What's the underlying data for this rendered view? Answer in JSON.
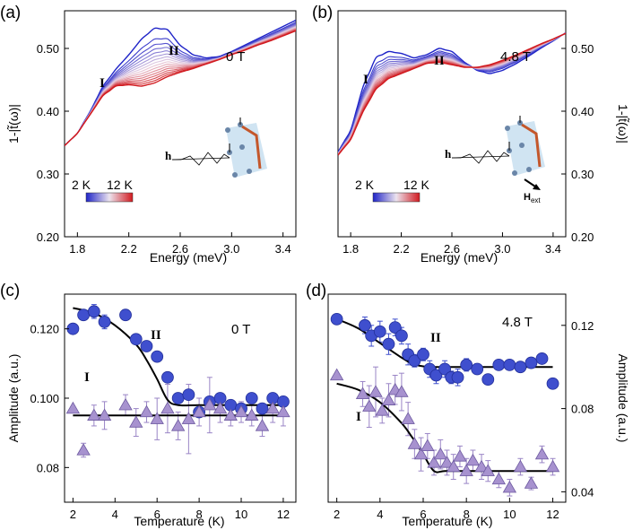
{
  "panels": {
    "a": {
      "letter": "(a)",
      "field": "0 T",
      "peak_I": "I",
      "peak_II": "II",
      "scale_low": "2 K",
      "scale_high": "12 K",
      "h_label": "h"
    },
    "b": {
      "letter": "(b)",
      "field": "4.8 T",
      "peak_I": "I",
      "peak_II": "II",
      "scale_low": "2 K",
      "scale_high": "12 K",
      "h_label": "h",
      "hext_label": "H",
      "hext_sub": "ext"
    },
    "c": {
      "letter": "(c)",
      "field": "0 T",
      "peak_I": "I",
      "peak_II": "II"
    },
    "d": {
      "letter": "(d)",
      "field": "4.8 T",
      "peak_I": "I",
      "peak_II": "II"
    }
  },
  "colors": {
    "cold": "#1f24c8",
    "mid": "#e9d2e2",
    "hot": "#d11a1f",
    "marker_blue": "#3f4fce",
    "marker_purple": "#a792cf",
    "errbar_purple": "#9a85c6"
  },
  "chart_data": [
    {
      "id": "a",
      "type": "line",
      "title": "0 T",
      "xlabel": "Energy (meV)",
      "ylabel": "1-|t̃(ω)|",
      "xlim": [
        1.7,
        3.5
      ],
      "ylim": [
        0.2,
        0.56
      ],
      "xticks": [
        1.8,
        2.2,
        2.6,
        3.0,
        3.4
      ],
      "xtick_labels": [
        "1.8",
        "2.2",
        "2.6",
        "3.0",
        "3.4"
      ],
      "yticks": [
        0.2,
        0.3,
        0.4,
        0.5
      ],
      "ytick_labels": [
        "0.20",
        "0.30",
        "0.40",
        "0.50"
      ],
      "colorbar": {
        "from": "2 K",
        "to": "12 K"
      },
      "series": [
        {
          "name": "2 K",
          "temp": 2,
          "x": [
            1.7,
            1.8,
            1.9,
            2.0,
            2.1,
            2.2,
            2.3,
            2.4,
            2.5,
            2.6,
            2.7,
            2.8,
            2.9,
            3.0,
            3.1,
            3.2,
            3.3,
            3.4,
            3.5
          ],
          "y": [
            0.345,
            0.365,
            0.4,
            0.44,
            0.467,
            0.49,
            0.515,
            0.532,
            0.53,
            0.505,
            0.49,
            0.485,
            0.487,
            0.495,
            0.505,
            0.515,
            0.525,
            0.535,
            0.545
          ]
        },
        {
          "name": "12 K",
          "temp": 12,
          "x": [
            1.7,
            1.8,
            1.9,
            2.0,
            2.1,
            2.2,
            2.3,
            2.4,
            2.5,
            2.6,
            2.7,
            2.8,
            2.9,
            3.0,
            3.1,
            3.2,
            3.3,
            3.4,
            3.5
          ],
          "y": [
            0.345,
            0.365,
            0.395,
            0.425,
            0.44,
            0.442,
            0.44,
            0.445,
            0.455,
            0.462,
            0.468,
            0.475,
            0.482,
            0.49,
            0.497,
            0.505,
            0.512,
            0.52,
            0.528
          ]
        }
      ]
    },
    {
      "id": "b",
      "type": "line",
      "title": "4.8 T",
      "xlabel": "Energy (meV)",
      "ylabel": "1-|t̃(ω)|",
      "xlim": [
        1.7,
        3.5
      ],
      "ylim": [
        0.2,
        0.56
      ],
      "xticks": [
        1.8,
        2.2,
        2.6,
        3.0,
        3.4
      ],
      "xtick_labels": [
        "1.8",
        "2.2",
        "2.6",
        "3.0",
        "3.4"
      ],
      "yticks": [
        0.2,
        0.3,
        0.4,
        0.5
      ],
      "ytick_labels": [
        "0.20",
        "0.30",
        "0.40",
        "0.50"
      ],
      "colorbar": {
        "from": "2 K",
        "to": "12 K"
      },
      "series": [
        {
          "name": "2 K",
          "temp": 2,
          "x": [
            1.7,
            1.8,
            1.9,
            2.0,
            2.1,
            2.2,
            2.3,
            2.4,
            2.5,
            2.6,
            2.7,
            2.8,
            2.9,
            3.0,
            3.1,
            3.2,
            3.3,
            3.4,
            3.5
          ],
          "y": [
            0.335,
            0.37,
            0.44,
            0.485,
            0.495,
            0.492,
            0.485,
            0.49,
            0.5,
            0.495,
            0.478,
            0.465,
            0.46,
            0.465,
            0.475,
            0.487,
            0.5,
            0.512,
            0.525
          ]
        },
        {
          "name": "12 K",
          "temp": 12,
          "x": [
            1.7,
            1.8,
            1.9,
            2.0,
            2.1,
            2.2,
            2.3,
            2.4,
            2.5,
            2.6,
            2.7,
            2.8,
            2.9,
            3.0,
            3.1,
            3.2,
            3.3,
            3.4,
            3.5
          ],
          "y": [
            0.33,
            0.355,
            0.4,
            0.435,
            0.452,
            0.46,
            0.468,
            0.476,
            0.478,
            0.474,
            0.47,
            0.47,
            0.474,
            0.481,
            0.489,
            0.498,
            0.507,
            0.515,
            0.524
          ]
        }
      ]
    },
    {
      "id": "c",
      "type": "scatter",
      "title": "0 T",
      "xlabel": "Temperature (K)",
      "ylabel": "Amplitude (a.u.)",
      "xlim": [
        1.6,
        12.6
      ],
      "ylim": [
        0.07,
        0.13
      ],
      "xticks": [
        2,
        4,
        6,
        8,
        10,
        12
      ],
      "xtick_labels": [
        "2",
        "4",
        "6",
        "8",
        "10",
        "12"
      ],
      "yticks": [
        0.08,
        0.1,
        0.12
      ],
      "ytick_labels": [
        "0.08",
        "0.100",
        "0.120"
      ],
      "series": [
        {
          "name": "II",
          "marker": "circle",
          "x": [
            2.0,
            2.5,
            3.0,
            3.5,
            4.5,
            5.0,
            5.5,
            6.0,
            6.5,
            7.0,
            7.5,
            8.0,
            8.5,
            9.0,
            9.5,
            10.0,
            10.5,
            11.0,
            11.5,
            12.0
          ],
          "y": [
            0.12,
            0.124,
            0.125,
            0.122,
            0.124,
            0.117,
            0.115,
            0.112,
            0.106,
            0.1,
            0.101,
            0.096,
            0.099,
            0.1,
            0.098,
            0.097,
            0.1,
            0.097,
            0.1,
            0.099
          ],
          "err": [
            0,
            0.001,
            0.002,
            0.002,
            0,
            0,
            0,
            0,
            0,
            0,
            0,
            0,
            0,
            0,
            0,
            0,
            0,
            0,
            0,
            0
          ],
          "fit": {
            "x": [
              2,
              3,
              4,
              5,
              5.5,
              6,
              6.5,
              7,
              8,
              10,
              12
            ],
            "y": [
              0.126,
              0.1245,
              0.121,
              0.1155,
              0.111,
              0.1055,
              0.0995,
              0.098,
              0.098,
              0.098,
              0.098
            ]
          }
        },
        {
          "name": "I",
          "marker": "triangle",
          "x": [
            2.0,
            2.5,
            3.0,
            3.5,
            4.5,
            5.0,
            5.5,
            6.0,
            6.5,
            7.0,
            7.5,
            8.0,
            8.5,
            9.0,
            9.5,
            10.0,
            10.5,
            11.0,
            11.5,
            12.0
          ],
          "y": [
            0.097,
            0.085,
            0.095,
            0.095,
            0.098,
            0.093,
            0.096,
            0.094,
            0.097,
            0.092,
            0.094,
            0.096,
            0.098,
            0.097,
            0.095,
            0.096,
            0.095,
            0.092,
            0.097,
            0.096
          ],
          "err": [
            0,
            0.002,
            0.003,
            0.004,
            0.003,
            0.004,
            0.003,
            0.006,
            0.007,
            0.004,
            0.01,
            0.004,
            0.008,
            0.004,
            0.003,
            0.003,
            0.003,
            0.003,
            0.004,
            0.004
          ],
          "fit": {
            "x": [
              2,
              12
            ],
            "y": [
              0.095,
              0.095
            ]
          }
        }
      ]
    },
    {
      "id": "d",
      "type": "scatter",
      "title": "4.8 T",
      "xlabel": "Temperature (K)",
      "ylabel": "Amplitude (a.u.)",
      "xlim": [
        1.6,
        12.6
      ],
      "ylim": [
        0.035,
        0.135
      ],
      "xticks": [
        2,
        4,
        6,
        8,
        10,
        12
      ],
      "xtick_labels": [
        "2",
        "4",
        "6",
        "8",
        "10",
        "12"
      ],
      "yticks": [
        0.04,
        0.08,
        0.12
      ],
      "ytick_labels": [
        "0.04",
        "0.08",
        "0.12"
      ],
      "series": [
        {
          "name": "II",
          "marker": "circle",
          "x": [
            2.0,
            3.3,
            3.6,
            4.0,
            4.4,
            4.7,
            5.0,
            5.3,
            5.6,
            6.0,
            6.3,
            6.6,
            7.0,
            7.3,
            7.6,
            8.0,
            8.5,
            9.0,
            9.5,
            10.0,
            10.5,
            11.0,
            11.5,
            12.0
          ],
          "y": [
            0.123,
            0.12,
            0.115,
            0.117,
            0.111,
            0.119,
            0.115,
            0.106,
            0.103,
            0.106,
            0.099,
            0.096,
            0.099,
            0.095,
            0.095,
            0.101,
            0.099,
            0.094,
            0.101,
            0.101,
            0.1,
            0.102,
            0.104,
            0.092
          ],
          "err": [
            0,
            0.004,
            0.005,
            0.005,
            0.005,
            0.004,
            0.004,
            0.005,
            0.003,
            0.003,
            0.004,
            0.004,
            0.004,
            0.003,
            0.004,
            0.003,
            0.002,
            0,
            0,
            0,
            0,
            0,
            0,
            0
          ],
          "fit": {
            "x": [
              2,
              3,
              4,
              5,
              5.5,
              6,
              6.5,
              7,
              8,
              10,
              12
            ],
            "y": [
              0.123,
              0.1185,
              0.1115,
              0.1045,
              0.1015,
              0.1003,
              0.1,
              0.1,
              0.1,
              0.1,
              0.1
            ]
          }
        },
        {
          "name": "I",
          "marker": "triangle",
          "x": [
            2.0,
            3.2,
            3.5,
            3.8,
            4.1,
            4.4,
            4.7,
            5.0,
            5.3,
            5.6,
            5.9,
            6.2,
            6.5,
            6.8,
            7.1,
            7.4,
            7.7,
            8.0,
            8.3,
            8.7,
            9.0,
            9.5,
            10.0,
            10.5,
            11.0,
            11.5,
            12.0
          ],
          "y": [
            0.096,
            0.087,
            0.081,
            0.088,
            0.079,
            0.084,
            0.089,
            0.088,
            0.075,
            0.063,
            0.058,
            0.062,
            0.054,
            0.058,
            0.054,
            0.052,
            0.057,
            0.05,
            0.055,
            0.052,
            0.05,
            0.046,
            0.042,
            0.052,
            0.044,
            0.058,
            0.052
          ],
          "err": [
            0,
            0.006,
            0.01,
            0.012,
            0.006,
            0.008,
            0.007,
            0.009,
            0.008,
            0.007,
            0.008,
            0.006,
            0.006,
            0.007,
            0.006,
            0.006,
            0.005,
            0.006,
            0.005,
            0.006,
            0.005,
            0.004,
            0.004,
            0.004,
            0.003,
            0.004,
            0.004
          ],
          "fit": {
            "x": [
              2,
              3,
              4,
              5,
              5.5,
              6,
              6.5,
              7,
              8,
              10,
              12
            ],
            "y": [
              0.092,
              0.089,
              0.083,
              0.073,
              0.066,
              0.058,
              0.05,
              0.05,
              0.05,
              0.05,
              0.05
            ]
          }
        }
      ]
    }
  ]
}
